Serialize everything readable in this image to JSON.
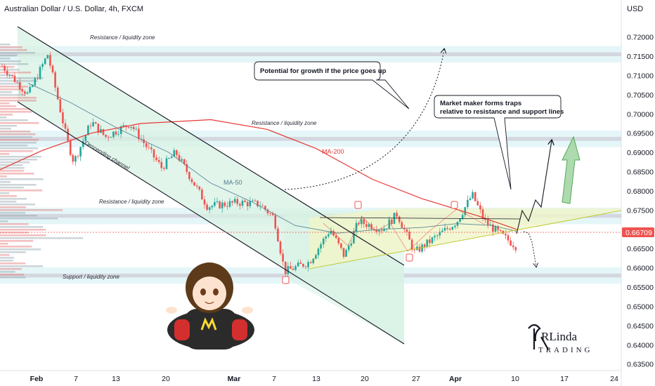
{
  "header": {
    "title": "Australian Dollar / U.S. Dollar, 4h, FXCM",
    "currency": "USD"
  },
  "chart_data": {
    "type": "candlestick",
    "title": "Australian Dollar / U.S. Dollar, 4h, FXCM",
    "ylim": [
      0.6333,
      0.7245
    ],
    "y_ticks": [
      "0.72000",
      "0.71500",
      "0.71000",
      "0.70500",
      "0.70000",
      "0.69500",
      "0.69000",
      "0.68500",
      "0.68000",
      "0.67500",
      "0.67000",
      "0.66500",
      "0.66000",
      "0.65500",
      "0.65000",
      "0.64500",
      "0.64000",
      "0.63500"
    ],
    "x_ticks": [
      "Feb",
      "7",
      "13",
      "20",
      "Mar",
      "7",
      "13",
      "20",
      "27",
      "Apr",
      "10",
      "17",
      "24"
    ],
    "last_price": "0.66709",
    "zones": [
      {
        "label": "Resistance / liquidity zone",
        "low": 0.715,
        "high": 0.716
      },
      {
        "label": "Resistance / liquidity zone",
        "low": 0.693,
        "high": 0.694
      },
      {
        "label": "Resistance / liquidity zone",
        "low": 0.673,
        "high": 0.674
      },
      {
        "label": "Support / liquidity zone",
        "low": 0.6575,
        "high": 0.6585
      }
    ],
    "moving_averages": [
      {
        "name": "MA-200",
        "color": "#e53935"
      },
      {
        "name": "MA-50",
        "color": "#4a7a8c"
      }
    ],
    "channel_label": "Descending channel",
    "annotations": [
      "Potential for growth if the price goes up",
      "Market maker forms traps relative to resistance and support lines"
    ],
    "callout": {
      "line1": "Market maker forms traps",
      "line2": "relative to resistance and support lines"
    },
    "colors": {
      "up": "#26a69a",
      "down": "#ef5350",
      "zone": "#d1d4dc",
      "zone_tint": "#cfeff2",
      "channel_fill": "#d8f1e4",
      "triangle_fill": "#f0f5c8",
      "arrow_green": "#66bb6a"
    },
    "sticker_icon": "anime-girl-shrug-sticker",
    "brand": {
      "logo_icon": "rlinda-trading-logo",
      "lines": [
        "RLinda",
        "TRADING"
      ]
    }
  }
}
